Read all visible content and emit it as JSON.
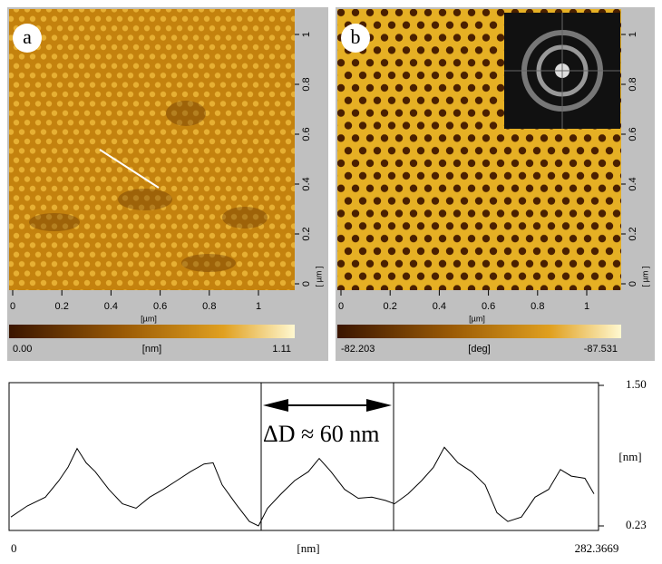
{
  "panels": [
    {
      "label": "a",
      "xticks": [
        0,
        0.2,
        0.4,
        0.6,
        0.8,
        1
      ],
      "yticks": [
        0,
        0.2,
        0.4,
        0.6,
        0.8,
        1
      ],
      "x_unit": "[µm]",
      "y_unit": "[ µm ]",
      "colorbar": {
        "min": "0.00",
        "unit": "[nm]",
        "max": "1.11"
      }
    },
    {
      "label": "b",
      "xticks": [
        0,
        0.2,
        0.4,
        0.6,
        0.8,
        1
      ],
      "yticks": [
        0,
        0.2,
        0.4,
        0.6,
        0.8,
        1
      ],
      "x_unit": "[µm]",
      "y_unit": "[ µm ]",
      "colorbar": {
        "min": "-82.203",
        "unit": "[deg]",
        "max": "-87.531"
      }
    }
  ],
  "chart_data": {
    "type": "line",
    "annotation": "ΔD ≈ 60 nm",
    "x_label": "[nm]",
    "y_label": "[nm]",
    "color": "#000000",
    "xlim": [
      0,
      282.3669
    ],
    "xticks": [
      0,
      282.3669
    ],
    "ylim": [
      0.23,
      1.5
    ],
    "yticks": [
      {
        "value": 1.5,
        "label": "1.50"
      },
      0.23
    ],
    "x": [
      0.87,
      8.69,
      17.38,
      23.89,
      28.24,
      32.58,
      36.92,
      41.27,
      47.78,
      54.3,
      60.82,
      67.33,
      73.85,
      80.36,
      86.88,
      93.4,
      97.74,
      102.08,
      108.6,
      115.12,
      119.46,
      123.8,
      130.32,
      136.84,
      143.35,
      148.57,
      154.22,
      160.73,
      167.25,
      173.76,
      180.28,
      184.62,
      191.14,
      197.66,
      203.3,
      208.51,
      215.03,
      221.54,
      228.06,
      233.71,
      238.92,
      245.44,
      251.95,
      258.47,
      264.12,
      269.33,
      275.85,
      280.19
    ],
    "values": [
      0.31,
      0.41,
      0.49,
      0.64,
      0.76,
      0.93,
      0.8,
      0.72,
      0.56,
      0.43,
      0.39,
      0.49,
      0.56,
      0.64,
      0.72,
      0.79,
      0.8,
      0.6,
      0.43,
      0.27,
      0.23,
      0.39,
      0.52,
      0.64,
      0.72,
      0.84,
      0.72,
      0.56,
      0.48,
      0.49,
      0.46,
      0.43,
      0.52,
      0.64,
      0.76,
      0.94,
      0.8,
      0.72,
      0.6,
      0.35,
      0.27,
      0.31,
      0.49,
      0.56,
      0.74,
      0.68,
      0.66,
      0.52
    ]
  }
}
